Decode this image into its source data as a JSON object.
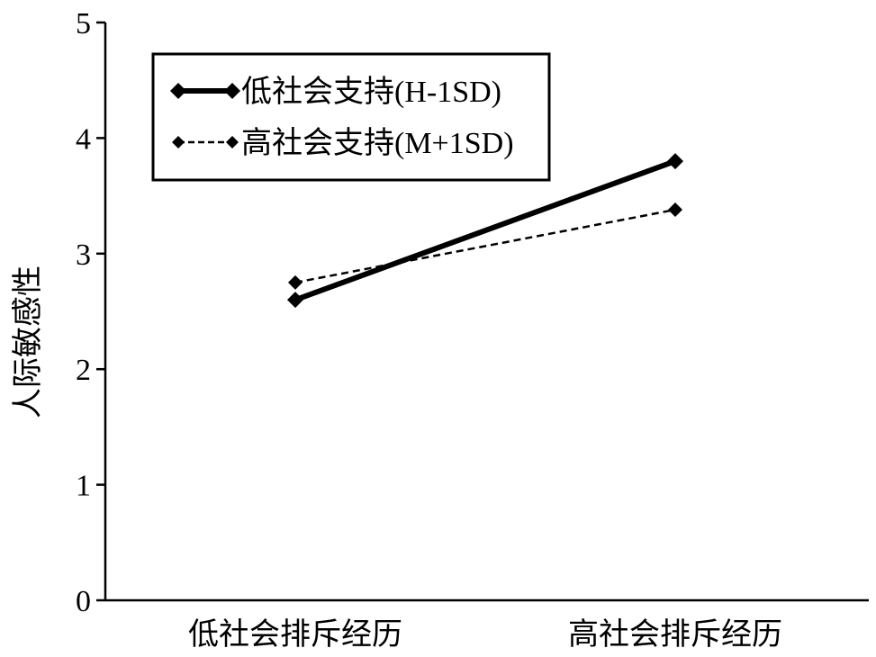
{
  "chart_data": {
    "type": "line",
    "title": "",
    "xlabel": "",
    "ylabel": "人际敏感性",
    "categories": [
      "低社会排斥经历",
      "高社会排斥经历"
    ],
    "ylim": [
      0,
      5
    ],
    "yticks": [
      "0",
      "1",
      "2",
      "3",
      "4",
      "5"
    ],
    "grid": false,
    "legend_position": "top-left",
    "series": [
      {
        "name": "低社会支持(H-1SD)",
        "values": [
          2.6,
          3.8
        ],
        "style": "solid-thick",
        "marker": "diamond",
        "color": "#000000"
      },
      {
        "name": "高社会支持(M+1SD)",
        "values": [
          2.75,
          3.38
        ],
        "style": "dashed",
        "marker": "diamond",
        "color": "#000000"
      }
    ]
  }
}
